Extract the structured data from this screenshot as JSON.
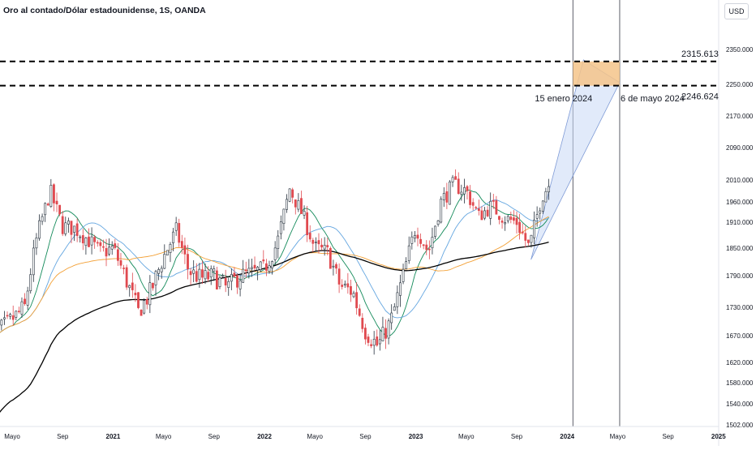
{
  "header": {
    "title": "Oro al contado/Dólar estadounidense, 1S, OANDA",
    "currency": "USD"
  },
  "chart_data": {
    "type": "candlestick",
    "title": "Oro al contado/Dólar estadounidense, 1S, OANDA",
    "y_axis_ticks": [
      2350,
      2250,
      2170,
      2090,
      2010,
      1960,
      1910,
      1850,
      1790,
      1730,
      1670,
      1620,
      1580,
      1540,
      1502
    ],
    "y_axis_tick_labels": [
      "2350.000",
      "2250.000",
      "2170.000",
      "2090.000",
      "2010.000",
      "1960.000",
      "1910.000",
      "1850.000",
      "1790.000",
      "1730.000",
      "1670.000",
      "1620.000",
      "1580.000",
      "1540.000",
      "1502.000"
    ],
    "x_axis_ticks": [
      {
        "label": "Mayo",
        "date": "2020-05"
      },
      {
        "label": "Sep",
        "date": "2020-09"
      },
      {
        "label": "2021",
        "date": "2021-01",
        "bold": true
      },
      {
        "label": "Mayo",
        "date": "2021-05"
      },
      {
        "label": "Sep",
        "date": "2021-09"
      },
      {
        "label": "2022",
        "date": "2022-01",
        "bold": true
      },
      {
        "label": "Mayo",
        "date": "2022-05"
      },
      {
        "label": "Sep",
        "date": "2022-09"
      },
      {
        "label": "2023",
        "date": "2023-01",
        "bold": true
      },
      {
        "label": "Mayo",
        "date": "2023-05"
      },
      {
        "label": "Sep",
        "date": "2023-09"
      },
      {
        "label": "2024",
        "date": "2024-01",
        "bold": true
      },
      {
        "label": "Mayo",
        "date": "2024-05"
      },
      {
        "label": "Sep",
        "date": "2024-09"
      },
      {
        "label": "2025",
        "date": "2025-01",
        "bold": true
      }
    ],
    "price_anchors": [
      [
        "2020-03",
        1660
      ],
      [
        "2020-05",
        1705
      ],
      [
        "2020-06",
        1730
      ],
      [
        "2020-07",
        1880
      ],
      [
        "2020-08",
        1985
      ],
      [
        "2020-09",
        1900
      ],
      [
        "2020-10",
        1895
      ],
      [
        "2020-11",
        1870
      ],
      [
        "2020-12",
        1840
      ],
      [
        "2021-01",
        1850
      ],
      [
        "2021-02",
        1785
      ],
      [
        "2021-03",
        1720
      ],
      [
        "2021-04",
        1760
      ],
      [
        "2021-05",
        1830
      ],
      [
        "2021-06",
        1890
      ],
      [
        "2021-07",
        1800
      ],
      [
        "2021-08",
        1785
      ],
      [
        "2021-09",
        1790
      ],
      [
        "2021-10",
        1765
      ],
      [
        "2021-11",
        1790
      ],
      [
        "2021-12",
        1795
      ],
      [
        "2022-01",
        1805
      ],
      [
        "2022-02",
        1860
      ],
      [
        "2022-03",
        1990
      ],
      [
        "2022-04",
        1930
      ],
      [
        "2022-05",
        1850
      ],
      [
        "2022-06",
        1840
      ],
      [
        "2022-07",
        1770
      ],
      [
        "2022-08",
        1760
      ],
      [
        "2022-09",
        1680
      ],
      [
        "2022-10",
        1650
      ],
      [
        "2022-11",
        1700
      ],
      [
        "2022-12",
        1790
      ],
      [
        "2023-01",
        1900
      ],
      [
        "2023-02",
        1840
      ],
      [
        "2023-03",
        1960
      ],
      [
        "2023-04",
        2000
      ],
      [
        "2023-05",
        1985
      ],
      [
        "2023-06",
        1925
      ],
      [
        "2023-07",
        1950
      ],
      [
        "2023-08",
        1920
      ],
      [
        "2023-09",
        1910
      ],
      [
        "2023-10",
        1850
      ],
      [
        "2023-11",
        1975
      ],
      [
        "2023-12",
        2020
      ]
    ],
    "moving_averages": [
      {
        "period": 10,
        "color": "#138a5a"
      },
      {
        "period": 20,
        "color": "#64a6e0"
      },
      {
        "period": 50,
        "color": "#f3a035"
      },
      {
        "period": 100,
        "color": "#000000"
      }
    ],
    "annotations": {
      "horizontal_levels": [
        {
          "value": 2315.613,
          "label": "2315.613"
        },
        {
          "value": 2246.624,
          "label": "2246.624"
        }
      ],
      "vertical_lines": [
        {
          "date": "2024-01-15",
          "label": "15 enero 2024"
        },
        {
          "date": "2024-05-06",
          "label": "6 de mayo 2024"
        }
      ],
      "target_box": {
        "from_date": "2024-01-15",
        "to_date": "2024-05-06",
        "low": 2246.624,
        "high": 2315.613,
        "color": "#f5c48a"
      },
      "projection": {
        "points": [
          [
            "2023-10-05",
            1825
          ],
          [
            "2024-02-10",
            2320
          ],
          [
            "2024-05-06",
            2255
          ]
        ],
        "fill": "#c9d9f5"
      }
    },
    "candle_colors": {
      "up": "#26313d",
      "down": "#e0494f"
    },
    "grid": false
  }
}
